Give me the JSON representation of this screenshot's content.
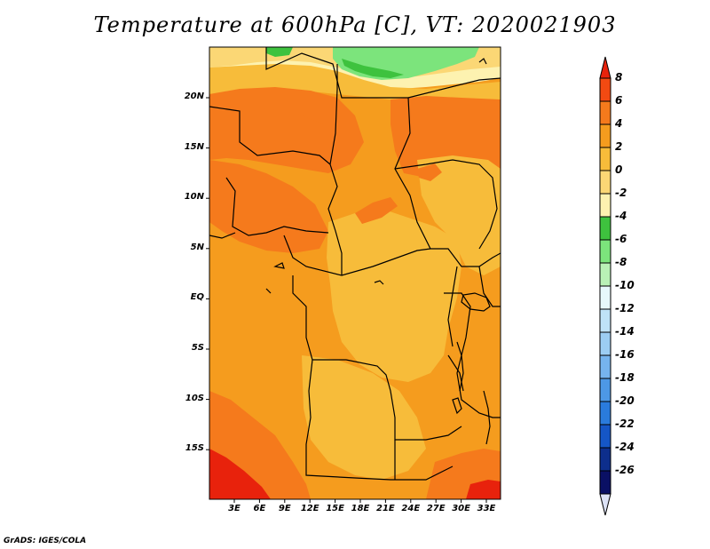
{
  "title": "Temperature at 600hPa [C], VT: 2020021903",
  "footer": "GrADS: IGES/COLA",
  "lat_labels": [
    "20N",
    "15N",
    "10N",
    "5N",
    "EQ",
    "5S",
    "10S",
    "15S"
  ],
  "lon_labels": [
    "3E",
    "6E",
    "9E",
    "12E",
    "15E",
    "18E",
    "21E",
    "24E",
    "27E",
    "30E",
    "33E"
  ],
  "colorbar": {
    "labels": [
      "8",
      "6",
      "4",
      "2",
      "0",
      "-2",
      "-4",
      "-6",
      "-8",
      "-10",
      "-12",
      "-14",
      "-16",
      "-18",
      "-20",
      "-22",
      "-24",
      "-26"
    ],
    "colors": [
      "#e8220c",
      "#f24a12",
      "#f57a1c",
      "#f59c1e",
      "#f7bc3a",
      "#fbd775",
      "#fdf2b0",
      "#3ec23e",
      "#7ce47c",
      "#b9f1b6",
      "#e7f8fb",
      "#bfe2f7",
      "#9ccdf3",
      "#76b4ee",
      "#4d98e5",
      "#2a7bdc",
      "#1556c6",
      "#0d2e8c",
      "#0a1064",
      "#dde3f7"
    ]
  },
  "map": {
    "background": "#f59c1e",
    "field_colors": {
      "warm_orange": "#f57a1c",
      "hot_red": "#e8220c",
      "light_orange": "#f7bc3a",
      "pale_yellow": "#fbd775",
      "cream": "#fdf2b0",
      "light_green": "#7ce47c",
      "green": "#3ec23e"
    }
  }
}
